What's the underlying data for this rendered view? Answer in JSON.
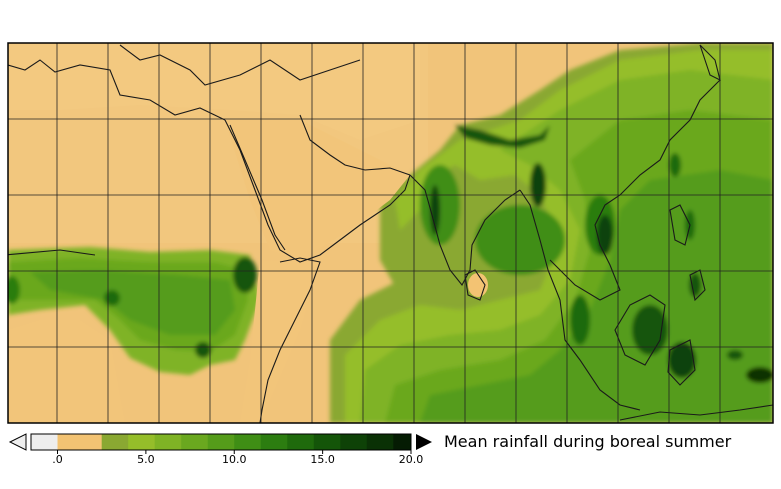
{
  "map": {
    "colors": {
      "dry": "#f1c47a",
      "desert": "#f0c16e",
      "coastline": "#1a1a1a",
      "grid": "#222222",
      "ocean_light": "#8fb63a",
      "land_green": "#5f9e22"
    }
  },
  "colorbar": {
    "ticks": [
      {
        "value": 0,
        "label": ".0"
      },
      {
        "value": 5,
        "label": "5.0"
      },
      {
        "value": 10,
        "label": "10.0"
      },
      {
        "value": 15,
        "label": "15.0"
      },
      {
        "value": 20,
        "label": "20.0"
      }
    ],
    "min": -1.5,
    "max": 20,
    "under_color": "#e8e8e8",
    "over_color": "#000000",
    "levels": [
      {
        "from": -1.5,
        "to": 0,
        "color": "#eeeeee"
      },
      {
        "from": 0,
        "to": 2.5,
        "color": "#f3c373"
      },
      {
        "from": 2.5,
        "to": 4,
        "color": "#8aa832"
      },
      {
        "from": 4,
        "to": 5.5,
        "color": "#95be2a"
      },
      {
        "from": 5.5,
        "to": 7,
        "color": "#7fb325"
      },
      {
        "from": 7,
        "to": 8.5,
        "color": "#6aa81f"
      },
      {
        "from": 8.5,
        "to": 10,
        "color": "#559c1a"
      },
      {
        "from": 10,
        "to": 11.5,
        "color": "#3f8e15"
      },
      {
        "from": 11.5,
        "to": 13,
        "color": "#2c7d10"
      },
      {
        "from": 13,
        "to": 14.5,
        "color": "#1f6a0c"
      },
      {
        "from": 14.5,
        "to": 16,
        "color": "#145509"
      },
      {
        "from": 16,
        "to": 17.5,
        "color": "#0e4207"
      },
      {
        "from": 17.5,
        "to": 19,
        "color": "#0a3105"
      },
      {
        "from": 19,
        "to": 20,
        "color": "#051c03"
      }
    ]
  },
  "legend": {
    "title": "Mean rainfall during boreal summer"
  }
}
